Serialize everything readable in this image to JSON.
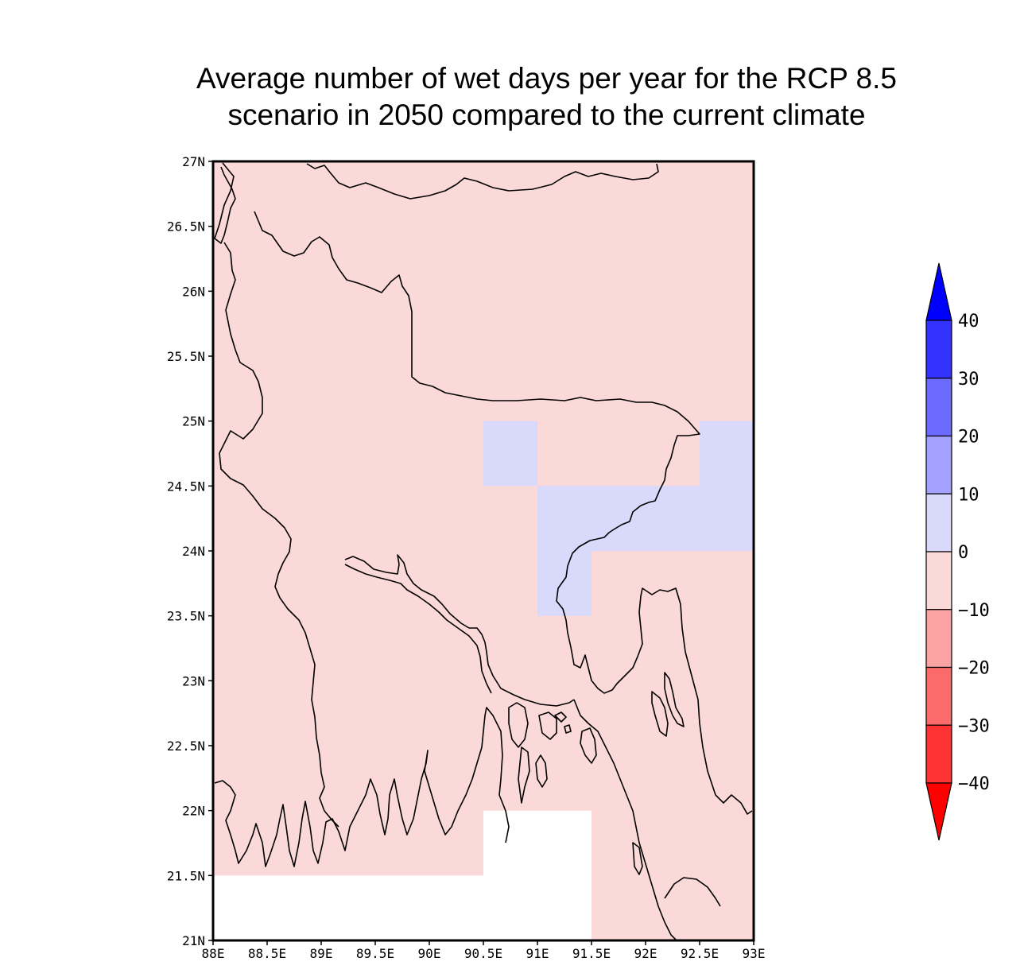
{
  "title": {
    "line1": "Average number of wet days per year for the RCP 8.5",
    "line2": "scenario in 2050 compared to the current climate"
  },
  "map": {
    "lon_range": [
      88,
      93
    ],
    "lat_range": [
      21,
      27
    ],
    "lon_ticks": [
      "88E",
      "88.5E",
      "89E",
      "89.5E",
      "90E",
      "90.5E",
      "91E",
      "91.5E",
      "92E",
      "92.5E",
      "93E"
    ],
    "lat_ticks": [
      "21N",
      "21.5N",
      "22N",
      "22.5N",
      "23N",
      "23.5N",
      "24N",
      "24.5N",
      "25N",
      "25.5N",
      "26N",
      "26.5N",
      "27N"
    ],
    "background_class": "-10 to 0",
    "cells": [
      {
        "lon": [
          90.5,
          91.0
        ],
        "lat": [
          24.5,
          25.0
        ],
        "class": "0 to 10"
      },
      {
        "lon": [
          91.0,
          92.5
        ],
        "lat": [
          24.0,
          24.5
        ],
        "class": "0 to 10"
      },
      {
        "lon": [
          91.0,
          91.5
        ],
        "lat": [
          23.5,
          24.0
        ],
        "class": "0 to 10"
      },
      {
        "lon": [
          92.5,
          93.0
        ],
        "lat": [
          24.0,
          25.0
        ],
        "class": "0 to 10"
      },
      {
        "lon": [
          88.0,
          90.5
        ],
        "lat": [
          21.0,
          21.5
        ],
        "class": "missing"
      },
      {
        "lon": [
          90.5,
          91.5
        ],
        "lat": [
          21.0,
          22.0
        ],
        "class": "missing"
      }
    ]
  },
  "colorbar": {
    "labels": [
      "40",
      "30",
      "20",
      "10",
      "0",
      "−10",
      "−20",
      "−30",
      "−40"
    ],
    "bins": [
      {
        "range": "30 to 40",
        "color": "#3333ff"
      },
      {
        "range": "20 to 30",
        "color": "#6b6bff"
      },
      {
        "range": "10 to 20",
        "color": "#a3a3ff"
      },
      {
        "range": "0 to 10",
        "color": "#d9d9fb"
      },
      {
        "range": "-10 to 0",
        "color": "#fbd9d9"
      },
      {
        "range": "-20 to -10",
        "color": "#fba3a3"
      },
      {
        "range": "-30 to -20",
        "color": "#fb6b6b"
      },
      {
        "range": "-40 to -30",
        "color": "#ff3333"
      }
    ],
    "over_color": "#0000ff",
    "under_color": "#ff0000"
  },
  "colors": {
    "negative_small": "#fbd9d9",
    "positive_small": "#d9d9fb",
    "missing": "#ffffff",
    "coastline": "#000000"
  }
}
